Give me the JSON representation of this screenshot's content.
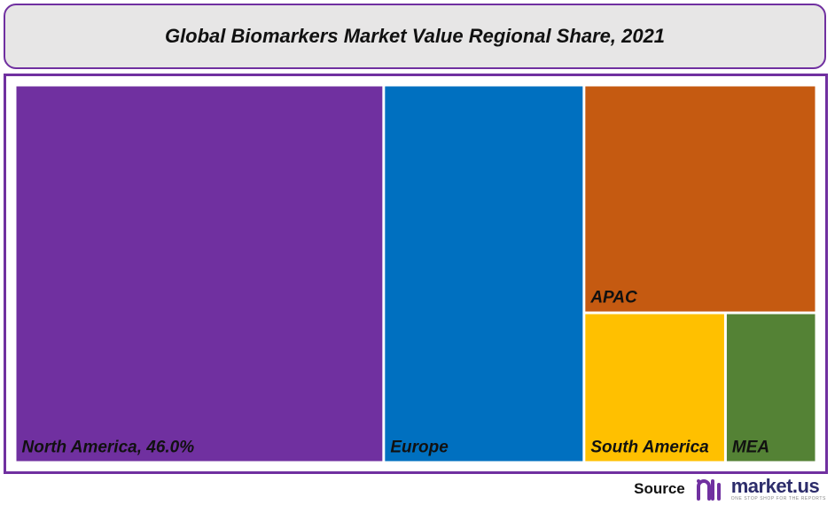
{
  "title": "Global Biomarkers Market Value Regional Share, 2021",
  "chart_data": {
    "type": "treemap",
    "title": "Global Biomarkers Market Value Regional Share, 2021",
    "series": [
      {
        "name": "North America",
        "label": "North America, 46.0%",
        "value": 46.0,
        "color": "#7030a0"
      },
      {
        "name": "Europe",
        "label": "Europe",
        "value": 25.0,
        "color": "#0070c0"
      },
      {
        "name": "APAC",
        "label": "APAC",
        "value": 17.5,
        "color": "#c55a11"
      },
      {
        "name": "South America",
        "label": "South America",
        "value": 7.0,
        "color": "#ffc000"
      },
      {
        "name": "MEA",
        "label": "MEA",
        "value": 4.5,
        "color": "#548235"
      }
    ]
  },
  "colors": {
    "frame_border": "#7030a0",
    "title_background": "#e7e6e6",
    "logo_accent": "#7030a0"
  },
  "footer": {
    "source_label": "Source",
    "logo_name": "market.us",
    "logo_tagline": "ONE STOP SHOP FOR THE REPORTS",
    "logo_icon": "market-us-logo-icon"
  }
}
